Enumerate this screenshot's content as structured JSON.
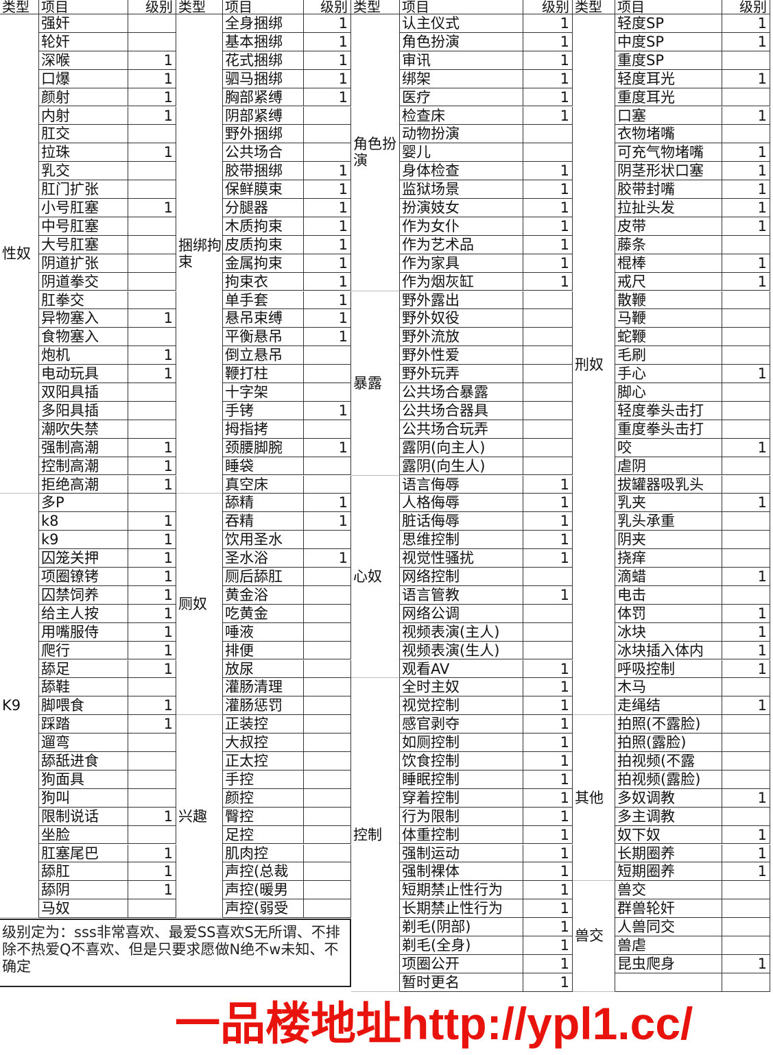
{
  "headers": {
    "type": "类型",
    "item": "项目",
    "level": "级别"
  },
  "columns": [
    {
      "groups": [
        {
          "type": "性奴",
          "items": [
            [
              "强奸",
              ""
            ],
            [
              "轮奸",
              ""
            ],
            [
              "深喉",
              "1"
            ],
            [
              "口爆",
              "1"
            ],
            [
              "颜射",
              "1"
            ],
            [
              "内射",
              "1"
            ],
            [
              "肛交",
              ""
            ],
            [
              "拉珠",
              "1"
            ],
            [
              "乳交",
              ""
            ],
            [
              "肛门扩张",
              ""
            ],
            [
              "小号肛塞",
              "1"
            ],
            [
              "中号肛塞",
              ""
            ],
            [
              "大号肛塞",
              ""
            ],
            [
              "阴道扩张",
              ""
            ],
            [
              "阴道拳交",
              ""
            ],
            [
              "肛拳交",
              ""
            ],
            [
              "异物塞入",
              "1"
            ],
            [
              "食物塞入",
              ""
            ],
            [
              "炮机",
              "1"
            ],
            [
              "电动玩具",
              "1"
            ],
            [
              "双阳具插",
              ""
            ],
            [
              "多阳具插",
              ""
            ],
            [
              "潮吹失禁",
              ""
            ],
            [
              "强制高潮",
              "1"
            ],
            [
              "控制高潮",
              "1"
            ],
            [
              "拒绝高潮",
              "1"
            ]
          ]
        },
        {
          "type": "K9",
          "items": [
            [
              "多P",
              ""
            ],
            [
              "k8",
              "1"
            ],
            [
              "k9",
              "1"
            ],
            [
              "囚笼关押",
              "1"
            ],
            [
              "项圈镣铐",
              "1"
            ],
            [
              "囚禁饲养",
              "1"
            ],
            [
              "给主人按",
              "1"
            ],
            [
              "用嘴服侍",
              "1"
            ],
            [
              "爬行",
              "1"
            ],
            [
              "舔足",
              "1"
            ],
            [
              "舔鞋",
              ""
            ],
            [
              "脚喂食",
              "1"
            ],
            [
              "踩踏",
              "1"
            ],
            [
              "遛弯",
              ""
            ],
            [
              "舔舐进食",
              ""
            ],
            [
              "狗面具",
              ""
            ],
            [
              "狗叫",
              ""
            ],
            [
              "限制说话",
              "1"
            ],
            [
              "坐脸",
              ""
            ],
            [
              "肛塞尾巴",
              "1"
            ],
            [
              "舔肛",
              "1"
            ],
            [
              "舔阴",
              "1"
            ],
            [
              "马奴",
              ""
            ]
          ]
        }
      ]
    },
    {
      "groups": [
        {
          "type": "捆绑拘束",
          "items": [
            [
              "全身捆绑",
              "1"
            ],
            [
              "基本捆绑",
              "1"
            ],
            [
              "花式捆绑",
              "1"
            ],
            [
              "驷马捆绑",
              "1"
            ],
            [
              "胸部紧缚",
              "1"
            ],
            [
              "阴部紧缚",
              ""
            ],
            [
              "野外捆绑",
              ""
            ],
            [
              "公共场合",
              ""
            ],
            [
              "胶带捆绑",
              "1"
            ],
            [
              "保鲜膜束",
              "1"
            ],
            [
              "分腿器",
              "1"
            ],
            [
              "木质拘束",
              "1"
            ],
            [
              "皮质拘束",
              "1"
            ],
            [
              "金属拘束",
              "1"
            ],
            [
              "拘束衣",
              "1"
            ],
            [
              "单手套",
              "1"
            ],
            [
              "悬吊束缚",
              "1"
            ],
            [
              "平衡悬吊",
              "1"
            ],
            [
              "倒立悬吊",
              ""
            ],
            [
              "鞭打柱",
              ""
            ],
            [
              "十字架",
              ""
            ],
            [
              "手铐",
              "1"
            ],
            [
              "拇指拷",
              ""
            ],
            [
              "颈腰脚腕",
              "1"
            ],
            [
              "睡袋",
              ""
            ],
            [
              "真空床",
              ""
            ]
          ]
        },
        {
          "type": "厕奴",
          "items": [
            [
              "舔精",
              "1"
            ],
            [
              "吞精",
              "1"
            ],
            [
              "饮用圣水",
              ""
            ],
            [
              "圣水浴",
              "1"
            ],
            [
              "厕后舔肛",
              ""
            ],
            [
              "黄金浴",
              ""
            ],
            [
              "吃黄金",
              ""
            ],
            [
              "唾液",
              ""
            ],
            [
              "排便",
              ""
            ],
            [
              "放尿",
              ""
            ],
            [
              "灌肠清理",
              ""
            ],
            [
              "灌肠惩罚",
              ""
            ]
          ]
        },
        {
          "type": "兴趣",
          "items": [
            [
              "正装控",
              ""
            ],
            [
              "大叔控",
              ""
            ],
            [
              "正太控",
              ""
            ],
            [
              "手控",
              ""
            ],
            [
              "颜控",
              ""
            ],
            [
              "臀控",
              ""
            ],
            [
              "足控",
              ""
            ],
            [
              "肌肉控",
              ""
            ],
            [
              "声控(总裁",
              ""
            ],
            [
              "声控(暖男",
              ""
            ],
            [
              "声控(弱受",
              ""
            ]
          ]
        }
      ]
    },
    {
      "groups": [
        {
          "type": "角色扮演",
          "items": [
            [
              "认主仪式",
              "1"
            ],
            [
              "角色扮演",
              "1"
            ],
            [
              "审讯",
              "1"
            ],
            [
              "绑架",
              "1"
            ],
            [
              "医疗",
              "1"
            ],
            [
              "检查床",
              "1"
            ],
            [
              "动物扮演",
              ""
            ],
            [
              "婴儿",
              ""
            ],
            [
              "身体检查",
              "1"
            ],
            [
              "监狱场景",
              "1"
            ],
            [
              "扮演妓女",
              "1"
            ],
            [
              "作为女仆",
              "1"
            ],
            [
              "作为艺术品",
              "1"
            ],
            [
              "作为家具",
              "1"
            ],
            [
              "作为烟灰缸",
              "1"
            ]
          ]
        },
        {
          "type": "暴露",
          "items": [
            [
              "野外露出",
              ""
            ],
            [
              "野外奴役",
              ""
            ],
            [
              "野外流放",
              ""
            ],
            [
              "野外性爱",
              ""
            ],
            [
              "野外玩弄",
              ""
            ],
            [
              "公共场合暴露",
              ""
            ],
            [
              "公共场合器具",
              ""
            ],
            [
              "公共场合玩弄",
              ""
            ],
            [
              "露阴(向主人)",
              ""
            ],
            [
              "露阴(向生人)",
              ""
            ]
          ]
        },
        {
          "type": "心奴",
          "items": [
            [
              "语言侮辱",
              "1"
            ],
            [
              "人格侮辱",
              "1"
            ],
            [
              "脏话侮辱",
              "1"
            ],
            [
              "思维控制",
              "1"
            ],
            [
              "视觉性骚扰",
              "1"
            ],
            [
              "网络控制",
              ""
            ],
            [
              "语言管教",
              "1"
            ],
            [
              "网络公调",
              ""
            ],
            [
              "视频表演(主人)",
              ""
            ],
            [
              "视频表演(生人)",
              ""
            ],
            [
              "观看AV",
              "1"
            ]
          ]
        },
        {
          "type": "控制",
          "items": [
            [
              "全时主奴",
              "1"
            ],
            [
              "视觉控制",
              "1"
            ],
            [
              "感官剥夺",
              "1"
            ],
            [
              "如厕控制",
              "1"
            ],
            [
              "饮食控制",
              "1"
            ],
            [
              "睡眠控制",
              "1"
            ],
            [
              "穿着控制",
              "1"
            ],
            [
              "行为限制",
              "1"
            ],
            [
              "体重控制",
              "1"
            ],
            [
              "强制运动",
              "1"
            ],
            [
              "强制裸体",
              "1"
            ],
            [
              "短期禁止性行为",
              "1"
            ],
            [
              "长期禁止性行为",
              "1"
            ],
            [
              "剃毛(阴部)",
              "1"
            ],
            [
              "剃毛(全身)",
              "1"
            ],
            [
              "项圈公开",
              "1"
            ],
            [
              "暂时更名",
              "1"
            ]
          ]
        }
      ]
    },
    {
      "groups": [
        {
          "type": "刑奴",
          "items": [
            [
              "轻度SP",
              "1"
            ],
            [
              "中度SP",
              "1"
            ],
            [
              "重度SP",
              ""
            ],
            [
              "轻度耳光",
              "1"
            ],
            [
              "重度耳光",
              ""
            ],
            [
              "口塞",
              "1"
            ],
            [
              "衣物堵嘴",
              ""
            ],
            [
              "可充气物堵嘴",
              "1"
            ],
            [
              "阴茎形状口塞",
              "1"
            ],
            [
              "胶带封嘴",
              "1"
            ],
            [
              "拉扯头发",
              "1"
            ],
            [
              "皮带",
              "1"
            ],
            [
              "藤条",
              ""
            ],
            [
              "棍棒",
              "1"
            ],
            [
              "戒尺",
              "1"
            ],
            [
              "散鞭",
              ""
            ],
            [
              "马鞭",
              ""
            ],
            [
              "蛇鞭",
              ""
            ],
            [
              "毛刷",
              ""
            ],
            [
              "手心",
              "1"
            ],
            [
              "脚心",
              ""
            ],
            [
              "轻度拳头击打",
              ""
            ],
            [
              "重度拳头击打",
              ""
            ],
            [
              "咬",
              "1"
            ],
            [
              "虐阴",
              ""
            ],
            [
              "拔罐器吸乳头",
              ""
            ],
            [
              "乳夹",
              "1"
            ],
            [
              "乳头承重",
              ""
            ],
            [
              "阴夹",
              ""
            ],
            [
              "挠痒",
              ""
            ],
            [
              "滴蜡",
              "1"
            ],
            [
              "电击",
              ""
            ],
            [
              "体罚",
              "1"
            ],
            [
              "冰块",
              "1"
            ],
            [
              "冰块插入体内",
              "1"
            ],
            [
              "呼吸控制",
              "1"
            ],
            [
              "木马",
              ""
            ],
            [
              "走绳结",
              "1"
            ]
          ]
        },
        {
          "type": "其他",
          "items": [
            [
              "拍照(不露脸)",
              ""
            ],
            [
              "拍照(露脸)",
              ""
            ],
            [
              "拍视频(不露",
              ""
            ],
            [
              "拍视频(露脸)",
              ""
            ],
            [
              "多奴调教",
              "1"
            ],
            [
              "多主调教",
              ""
            ],
            [
              "奴下奴",
              "1"
            ],
            [
              "长期圈养",
              "1"
            ],
            [
              "短期圈养",
              "1"
            ]
          ]
        },
        {
          "type": "兽交",
          "items": [
            [
              "兽交",
              ""
            ],
            [
              "群兽轮奸",
              ""
            ],
            [
              "人兽同交",
              ""
            ],
            [
              "兽虐",
              ""
            ],
            [
              "昆虫爬身",
              "1"
            ],
            [
              "",
              ""
            ]
          ]
        }
      ]
    }
  ],
  "note": "级别定为：sss非常喜欢、最爱SS喜欢S无所谓、不排除不热爱Q不喜欢、但是只要求愿做N绝不w未知、不确定",
  "watermark": "一品楼地址http://ypl1.cc/"
}
